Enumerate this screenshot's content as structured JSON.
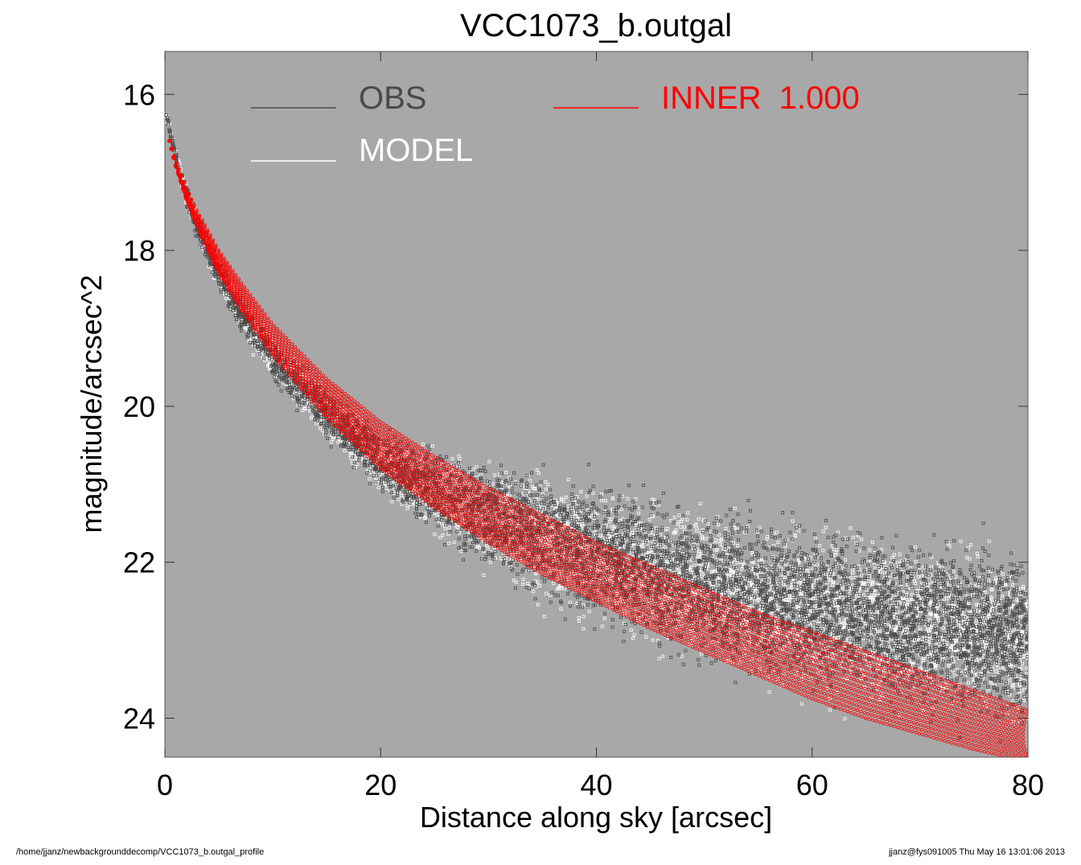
{
  "chart_data": {
    "type": "scatter",
    "title": "VCC1073_b.outgal",
    "xlabel": "Distance along sky [arcsec]",
    "ylabel": "magnitude/arcsec^2",
    "xlim": [
      0,
      80
    ],
    "ylim": [
      24.5,
      15.45
    ],
    "y_inverted": true,
    "xticks": [
      "0",
      "20",
      "40",
      "60",
      "80"
    ],
    "xtick_values": [
      0,
      20,
      40,
      60,
      80
    ],
    "yticks": [
      "16",
      "18",
      "20",
      "22",
      "24"
    ],
    "ytick_values": [
      16,
      18,
      20,
      22,
      24
    ],
    "grid": false,
    "legend_placement": "top-left",
    "series": [
      {
        "name": "OBS",
        "color": "#4a4a4a",
        "marker": "square",
        "x": [
          0.2,
          1,
          2,
          3,
          5,
          7,
          10,
          15,
          20,
          25,
          30,
          35,
          40,
          45,
          50,
          55,
          60,
          65,
          70,
          75,
          80
        ],
        "y_center": [
          16.3,
          16.8,
          17.3,
          17.7,
          18.3,
          18.8,
          19.4,
          20.1,
          20.7,
          21.1,
          21.4,
          21.7,
          21.9,
          22.1,
          22.3,
          22.5,
          22.6,
          22.7,
          22.8,
          22.9,
          23.0
        ],
        "y_spread": [
          0.1,
          0.15,
          0.2,
          0.25,
          0.3,
          0.35,
          0.4,
          0.5,
          0.6,
          0.8,
          1.0,
          1.2,
          1.3,
          1.4,
          1.5,
          1.5,
          1.6,
          1.6,
          1.6,
          1.7,
          1.7
        ]
      },
      {
        "name": "MODEL",
        "color": "#ffffff",
        "marker": "square",
        "x": [
          0.2,
          1,
          2,
          3,
          5,
          7,
          10,
          15,
          20,
          25,
          30,
          35,
          40,
          45,
          50,
          55,
          60,
          65,
          70,
          75,
          80
        ],
        "y_center": [
          16.3,
          16.8,
          17.3,
          17.7,
          18.3,
          18.8,
          19.4,
          20.1,
          20.7,
          21.1,
          21.4,
          21.7,
          21.9,
          22.1,
          22.3,
          22.5,
          22.6,
          22.7,
          22.8,
          22.9,
          23.0
        ],
        "y_spread": [
          0.1,
          0.15,
          0.2,
          0.25,
          0.3,
          0.35,
          0.4,
          0.5,
          0.6,
          0.8,
          1.0,
          1.2,
          1.3,
          1.4,
          1.5,
          1.5,
          1.6,
          1.6,
          1.6,
          1.7,
          1.7
        ]
      },
      {
        "name": "INNER 1.000",
        "color": "#ff0000",
        "marker": "circle",
        "x": [
          0.5,
          1,
          2,
          3,
          5,
          7,
          10,
          15,
          20,
          25,
          30,
          35,
          40,
          45,
          50,
          55,
          60,
          65,
          70,
          75,
          80
        ],
        "y_upper": [
          16.6,
          16.85,
          17.2,
          17.5,
          18.0,
          18.4,
          18.95,
          19.65,
          20.2,
          20.65,
          21.05,
          21.4,
          21.75,
          22.05,
          22.35,
          22.65,
          22.9,
          23.15,
          23.4,
          23.65,
          23.9
        ],
        "y_lower": [
          16.6,
          16.9,
          17.35,
          17.7,
          18.3,
          18.75,
          19.35,
          20.15,
          20.8,
          21.3,
          21.75,
          22.15,
          22.5,
          22.85,
          23.15,
          23.45,
          23.75,
          24.0,
          24.2,
          24.4,
          24.55
        ]
      }
    ]
  },
  "legend": {
    "obs_label": "OBS",
    "model_label": "MODEL",
    "inner_label": "INNER  1.000"
  },
  "colors": {
    "plot_background": "#a8a8a8",
    "obs": "#4a4a4a",
    "model": "#ffffff",
    "inner": "#ff0000"
  },
  "footer": {
    "path": "/home/jjanz/newbackgrounddecomp/VCC1073_b.outgal_profile",
    "stamp": "jjanz@fys091005  Thu May 16 13:01:06 2013"
  }
}
